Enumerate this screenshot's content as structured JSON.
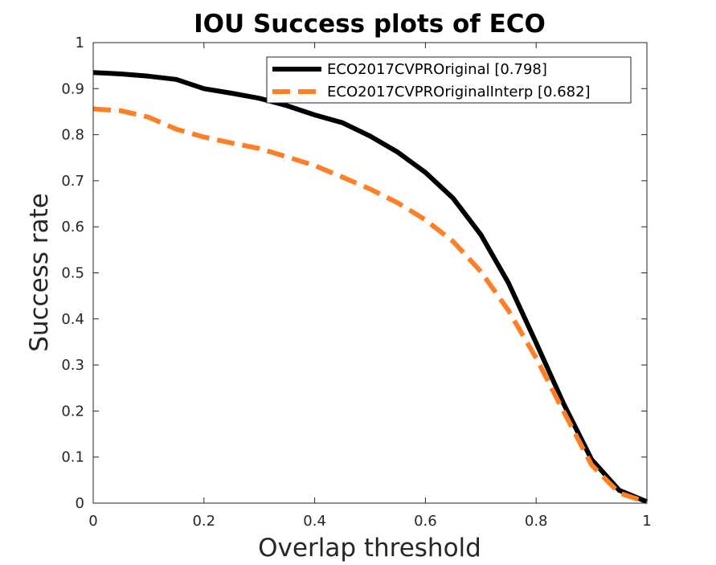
{
  "chart_data": {
    "type": "line",
    "title": "IOU Success plots of ECO",
    "xlabel": "Overlap threshold",
    "ylabel": "Success rate",
    "xlim": [
      0,
      1
    ],
    "ylim": [
      0,
      1
    ],
    "x_ticks": [
      0,
      0.2,
      0.4,
      0.6,
      0.8,
      1
    ],
    "x_tick_labels": [
      "0",
      "0.2",
      "0.4",
      "0.6",
      "0.8",
      "1"
    ],
    "y_ticks": [
      0,
      0.1,
      0.2,
      0.3,
      0.4,
      0.5,
      0.6,
      0.7,
      0.8,
      0.9,
      1
    ],
    "y_tick_labels": [
      "0",
      "0.1",
      "0.2",
      "0.3",
      "0.4",
      "0.5",
      "0.6",
      "0.7",
      "0.8",
      "0.9",
      "1"
    ],
    "grid": false,
    "legend_position": "top-right",
    "x": [
      0,
      0.05,
      0.1,
      0.15,
      0.2,
      0.25,
      0.3,
      0.35,
      0.4,
      0.45,
      0.5,
      0.55,
      0.6,
      0.65,
      0.7,
      0.75,
      0.8,
      0.85,
      0.9,
      0.95,
      1
    ],
    "series": [
      {
        "name": "ECO2017CVPROriginal [0.798]",
        "color": "#000000",
        "style": "solid",
        "values": [
          0.935,
          0.932,
          0.927,
          0.92,
          0.9,
          0.89,
          0.879,
          0.863,
          0.843,
          0.826,
          0.797,
          0.762,
          0.718,
          0.662,
          0.583,
          0.478,
          0.348,
          0.215,
          0.095,
          0.028,
          0.003
        ]
      },
      {
        "name": "ECO2017CVPROriginalInterp [0.682]",
        "color": "#FF7F27",
        "style": "dashed",
        "values": [
          0.856,
          0.852,
          0.838,
          0.812,
          0.795,
          0.782,
          0.77,
          0.752,
          0.733,
          0.708,
          0.682,
          0.652,
          0.615,
          0.568,
          0.503,
          0.418,
          0.315,
          0.198,
          0.083,
          0.022,
          0.002
        ]
      }
    ]
  }
}
